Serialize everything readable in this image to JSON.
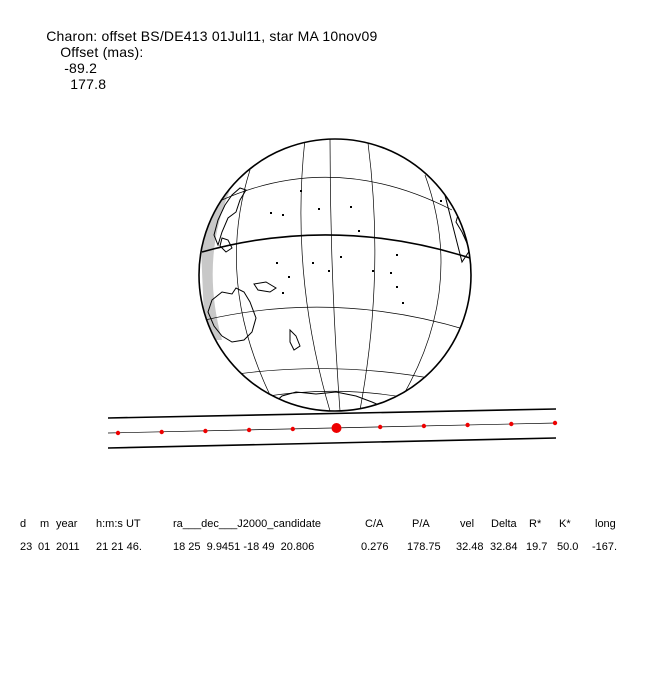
{
  "title": {
    "label": "Charon: offset BS/DE413 01Jul11, star MA 10nov09",
    "offset_label": "Offset (mas):",
    "offset_ra": "-89.2",
    "offset_dec": "177.8"
  },
  "track": {
    "points": 11,
    "closest_index": 5
  },
  "colors": {
    "track_dots": "#ee0000",
    "lines": "#000000",
    "night_shade": "#c8c8c8"
  },
  "table": {
    "headers": [
      "d",
      "m",
      "year",
      "h:m:s UT",
      "ra___dec___J2000_candidate",
      "C/A",
      "P/A",
      "vel",
      "Delta",
      "R*",
      "K*",
      "long"
    ],
    "values": [
      "23",
      "01",
      "2011",
      "21 21 46.",
      "18 25  9.9451 -18 49  20.806",
      "0.276",
      "178.75",
      "32.48",
      "32.84",
      "19.7",
      "50.0",
      "-167."
    ]
  }
}
